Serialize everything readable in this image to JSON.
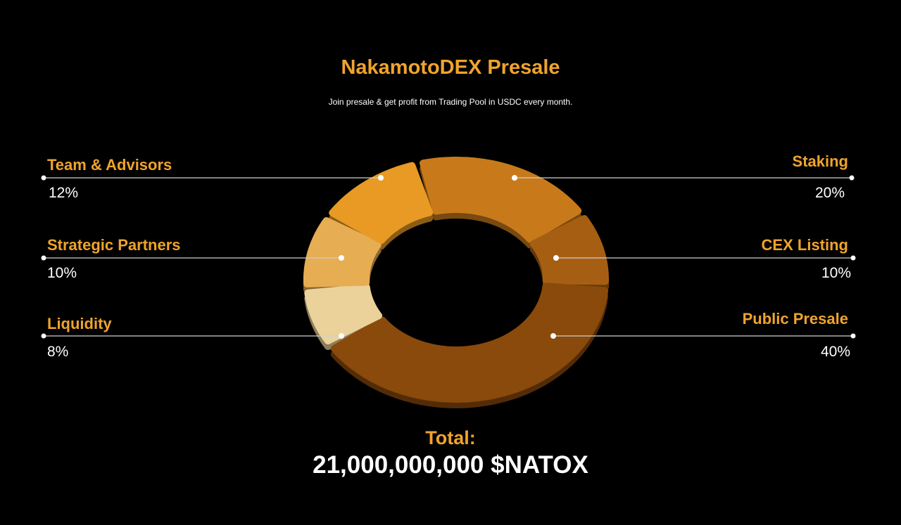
{
  "title": "NakamotoDEX Presale",
  "subtitle": "Join presale & get profit from Trading Pool in  USDC every month.",
  "chart_data": {
    "type": "pie",
    "variant": "donut",
    "title": "NakamotoDEX Presale",
    "unit": "%",
    "slices": [
      {
        "label": "Staking",
        "value": 20,
        "display": "20%",
        "color": "#c87a1a",
        "side": "right"
      },
      {
        "label": "CEX Listing",
        "value": 10,
        "display": "10%",
        "color": "#a65f12",
        "side": "right"
      },
      {
        "label": "Public Presale",
        "value": 40,
        "display": "40%",
        "color": "#8a4a0c",
        "side": "right"
      },
      {
        "label": "Liquidity",
        "value": 8,
        "display": "8%",
        "color": "#ead29a",
        "side": "left"
      },
      {
        "label": "Strategic Partners",
        "value": 10,
        "display": "10%",
        "color": "#e6ad52",
        "side": "left"
      },
      {
        "label": "Team & Advisors",
        "value": 12,
        "display": "12%",
        "color": "#e89a24",
        "side": "left"
      }
    ]
  },
  "total": {
    "label": "Total:",
    "value": "21,000,000,000 $NATOX"
  }
}
